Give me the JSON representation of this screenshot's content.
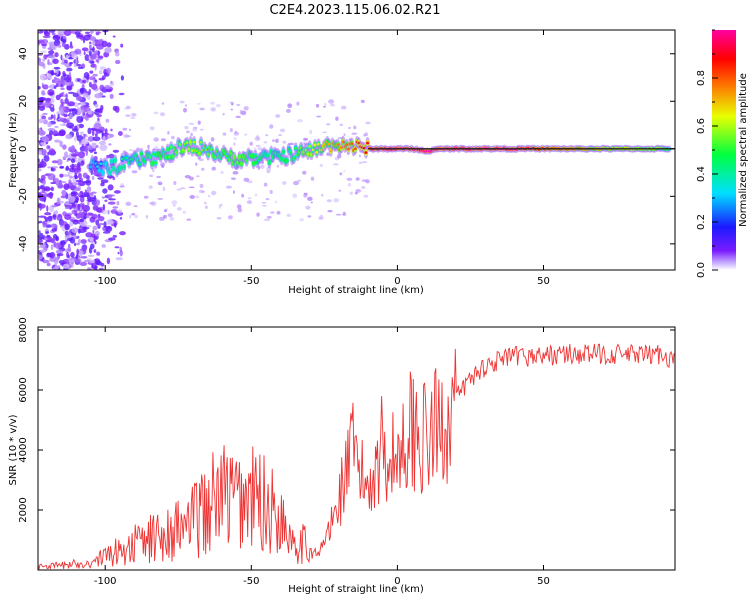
{
  "figure_title": "C2E4.2023.115.06.02.R21",
  "colors": {
    "snr_line": "#ee3333",
    "axis": "#000000",
    "spectrum_bg": "#ffffff"
  },
  "chart_data": [
    {
      "type": "heatmap",
      "title": "C2E4.2023.115.06.02.R21",
      "xlabel": "Height of straight line (km)",
      "ylabel": "Frequency (Hz)",
      "xlim": [
        -123,
        95
      ],
      "ylim": [
        -51,
        50
      ],
      "xticks": [
        -100,
        -50,
        0,
        50
      ],
      "yticks": [
        -40,
        -20,
        0,
        20,
        40
      ],
      "ridge": {
        "description": "frequency of peak spectral amplitude vs height",
        "height_km": [
          -105,
          -100,
          -95,
          -90,
          -85,
          -80,
          -75,
          -70,
          -65,
          -60,
          -55,
          -50,
          -45,
          -40,
          -35,
          -30,
          -25,
          -20,
          -15,
          -10,
          -5,
          0,
          5,
          10,
          15,
          20,
          30,
          40,
          50,
          60,
          70,
          80,
          90,
          93
        ],
        "frequency_hz": [
          -7,
          -8,
          -7,
          -5,
          -4,
          -3,
          0,
          1,
          0,
          -3,
          -4,
          -4,
          -4,
          -3,
          -2,
          -1,
          1,
          2,
          1,
          0,
          0,
          0,
          0,
          -1,
          0,
          0,
          0,
          0,
          0,
          0,
          0,
          0,
          0,
          0
        ],
        "amplitude": [
          0.3,
          0.35,
          0.4,
          0.45,
          0.5,
          0.5,
          0.55,
          0.6,
          0.55,
          0.5,
          0.55,
          0.5,
          0.45,
          0.45,
          0.5,
          0.6,
          0.7,
          0.75,
          0.8,
          0.9,
          1.0,
          1.0,
          1.0,
          1.0,
          1.0,
          1.0,
          1.0,
          1.0,
          0.85,
          0.8,
          0.7,
          0.65,
          0.6,
          0.5
        ]
      },
      "colorbar": {
        "label": "Normalized spectral amplitude",
        "range": [
          0.0,
          1.0
        ],
        "ticks": [
          "0.0",
          "0.2",
          "0.4",
          "0.6",
          "0.8"
        ],
        "tick_values": [
          0.0,
          0.2,
          0.4,
          0.6,
          0.8
        ]
      }
    },
    {
      "type": "line",
      "xlabel": "Height of straight line (km)",
      "ylabel": "SNR (10 * v/v)",
      "xlim": [
        -123,
        95
      ],
      "ylim": [
        0,
        8100
      ],
      "xticks": [
        -100,
        -50,
        0,
        50
      ],
      "yticks": [
        2000,
        4000,
        6000,
        8000
      ],
      "series": [
        {
          "name": "SNR",
          "x": [
            -123,
            -115,
            -105,
            -100,
            -95,
            -90,
            -85,
            -80,
            -75,
            -70,
            -65,
            -60,
            -55,
            -50,
            -45,
            -40,
            -35,
            -30,
            -27,
            -25,
            -22,
            -20,
            -17,
            -15,
            -12,
            -10,
            -7,
            -5,
            -2,
            0,
            3,
            5,
            8,
            10,
            13,
            15,
            18,
            20,
            25,
            30,
            35,
            40,
            50,
            60,
            70,
            80,
            85,
            90,
            95
          ],
          "y": [
            120,
            150,
            250,
            450,
            650,
            850,
            1000,
            1200,
            1350,
            1600,
            2100,
            2500,
            2300,
            2400,
            2200,
            1700,
            1100,
            700,
            450,
            1000,
            1600,
            2400,
            3500,
            3900,
            3000,
            2900,
            3600,
            4300,
            3700,
            3800,
            4500,
            4800,
            4500,
            4200,
            4700,
            4800,
            5300,
            5700,
            6400,
            6800,
            7000,
            7100,
            7150,
            7200,
            7200,
            7180,
            7150,
            7200,
            7000
          ]
        }
      ]
    }
  ]
}
